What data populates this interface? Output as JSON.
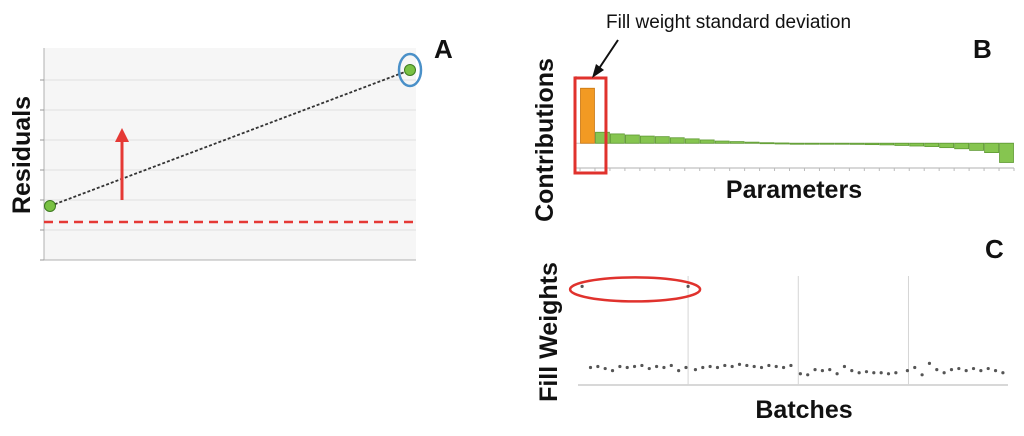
{
  "colors": {
    "point_fill": "#79c143",
    "point_stroke": "#3d7a20",
    "contribution_bar": "#86c550",
    "highlight_bar": "#f29a23",
    "threshold": "#e53935",
    "arrow": "#e53935",
    "highlight_box": "#e0322d",
    "circle_marker": "#4a90c8",
    "dots": "#555555"
  },
  "chart_data": [
    {
      "panel": "A",
      "type": "line",
      "ylabel": "Residuals",
      "xlabel": "",
      "points": [
        {
          "x": 0,
          "y": 0.1
        },
        {
          "x": 1,
          "y": 0.95
        }
      ],
      "xlim": [
        0,
        1
      ],
      "ylim": [
        0,
        1
      ],
      "threshold": 0.0,
      "grid": true,
      "arrow_direction": "up",
      "highlighted_point": 1
    },
    {
      "panel": "B",
      "type": "bar",
      "ylabel": "Contributions",
      "xlabel": "Parameters",
      "annotation": "Fill weight standard deviation",
      "highlighted_index": 0,
      "values": [
        1.0,
        0.2,
        0.17,
        0.15,
        0.13,
        0.12,
        0.1,
        0.08,
        0.06,
        0.04,
        0.03,
        0.02,
        0.01,
        0.005,
        0.0,
        -0.005,
        -0.01,
        -0.015,
        -0.02,
        -0.025,
        -0.03,
        -0.04,
        -0.05,
        -0.06,
        -0.08,
        -0.1,
        -0.13,
        -0.17,
        -0.35
      ],
      "ylim": [
        -0.45,
        1.15
      ]
    },
    {
      "panel": "C",
      "type": "scatter",
      "ylabel": "Fill Weights",
      "xlabel": "Batches",
      "groups": 4,
      "ylim": [
        0,
        1
      ],
      "highlighted_points": [
        0,
        1
      ],
      "points": [
        {
          "x": 0.2,
          "y": 0.9
        },
        {
          "x": 10.3,
          "y": 0.9
        },
        {
          "x": 1.0,
          "y": 0.12
        },
        {
          "x": 1.7,
          "y": 0.13
        },
        {
          "x": 2.4,
          "y": 0.11
        },
        {
          "x": 3.1,
          "y": 0.09
        },
        {
          "x": 3.8,
          "y": 0.13
        },
        {
          "x": 4.5,
          "y": 0.12
        },
        {
          "x": 5.2,
          "y": 0.13
        },
        {
          "x": 5.9,
          "y": 0.14
        },
        {
          "x": 6.6,
          "y": 0.11
        },
        {
          "x": 7.3,
          "y": 0.13
        },
        {
          "x": 8.0,
          "y": 0.12
        },
        {
          "x": 8.7,
          "y": 0.14
        },
        {
          "x": 9.4,
          "y": 0.09
        },
        {
          "x": 10.1,
          "y": 0.12
        },
        {
          "x": 11.0,
          "y": 0.1
        },
        {
          "x": 11.7,
          "y": 0.12
        },
        {
          "x": 12.4,
          "y": 0.13
        },
        {
          "x": 13.1,
          "y": 0.12
        },
        {
          "x": 13.8,
          "y": 0.14
        },
        {
          "x": 14.5,
          "y": 0.13
        },
        {
          "x": 15.2,
          "y": 0.15
        },
        {
          "x": 15.9,
          "y": 0.14
        },
        {
          "x": 16.6,
          "y": 0.13
        },
        {
          "x": 17.3,
          "y": 0.12
        },
        {
          "x": 18.0,
          "y": 0.14
        },
        {
          "x": 18.7,
          "y": 0.13
        },
        {
          "x": 19.4,
          "y": 0.12
        },
        {
          "x": 20.1,
          "y": 0.14
        },
        {
          "x": 21.0,
          "y": 0.06
        },
        {
          "x": 21.7,
          "y": 0.05
        },
        {
          "x": 22.4,
          "y": 0.1
        },
        {
          "x": 23.1,
          "y": 0.09
        },
        {
          "x": 23.8,
          "y": 0.1
        },
        {
          "x": 24.5,
          "y": 0.06
        },
        {
          "x": 25.2,
          "y": 0.13
        },
        {
          "x": 25.9,
          "y": 0.09
        },
        {
          "x": 26.6,
          "y": 0.07
        },
        {
          "x": 27.3,
          "y": 0.08
        },
        {
          "x": 28.0,
          "y": 0.07
        },
        {
          "x": 28.7,
          "y": 0.07
        },
        {
          "x": 29.4,
          "y": 0.06
        },
        {
          "x": 30.1,
          "y": 0.07
        },
        {
          "x": 31.2,
          "y": 0.09
        },
        {
          "x": 31.9,
          "y": 0.12
        },
        {
          "x": 32.6,
          "y": 0.05
        },
        {
          "x": 33.3,
          "y": 0.16
        },
        {
          "x": 34.0,
          "y": 0.1
        },
        {
          "x": 34.7,
          "y": 0.07
        },
        {
          "x": 35.4,
          "y": 0.1
        },
        {
          "x": 36.1,
          "y": 0.11
        },
        {
          "x": 36.8,
          "y": 0.09
        },
        {
          "x": 37.5,
          "y": 0.11
        },
        {
          "x": 38.2,
          "y": 0.09
        },
        {
          "x": 38.9,
          "y": 0.11
        },
        {
          "x": 39.6,
          "y": 0.09
        },
        {
          "x": 40.3,
          "y": 0.07
        }
      ],
      "xlim": [
        0,
        40.5
      ]
    }
  ]
}
